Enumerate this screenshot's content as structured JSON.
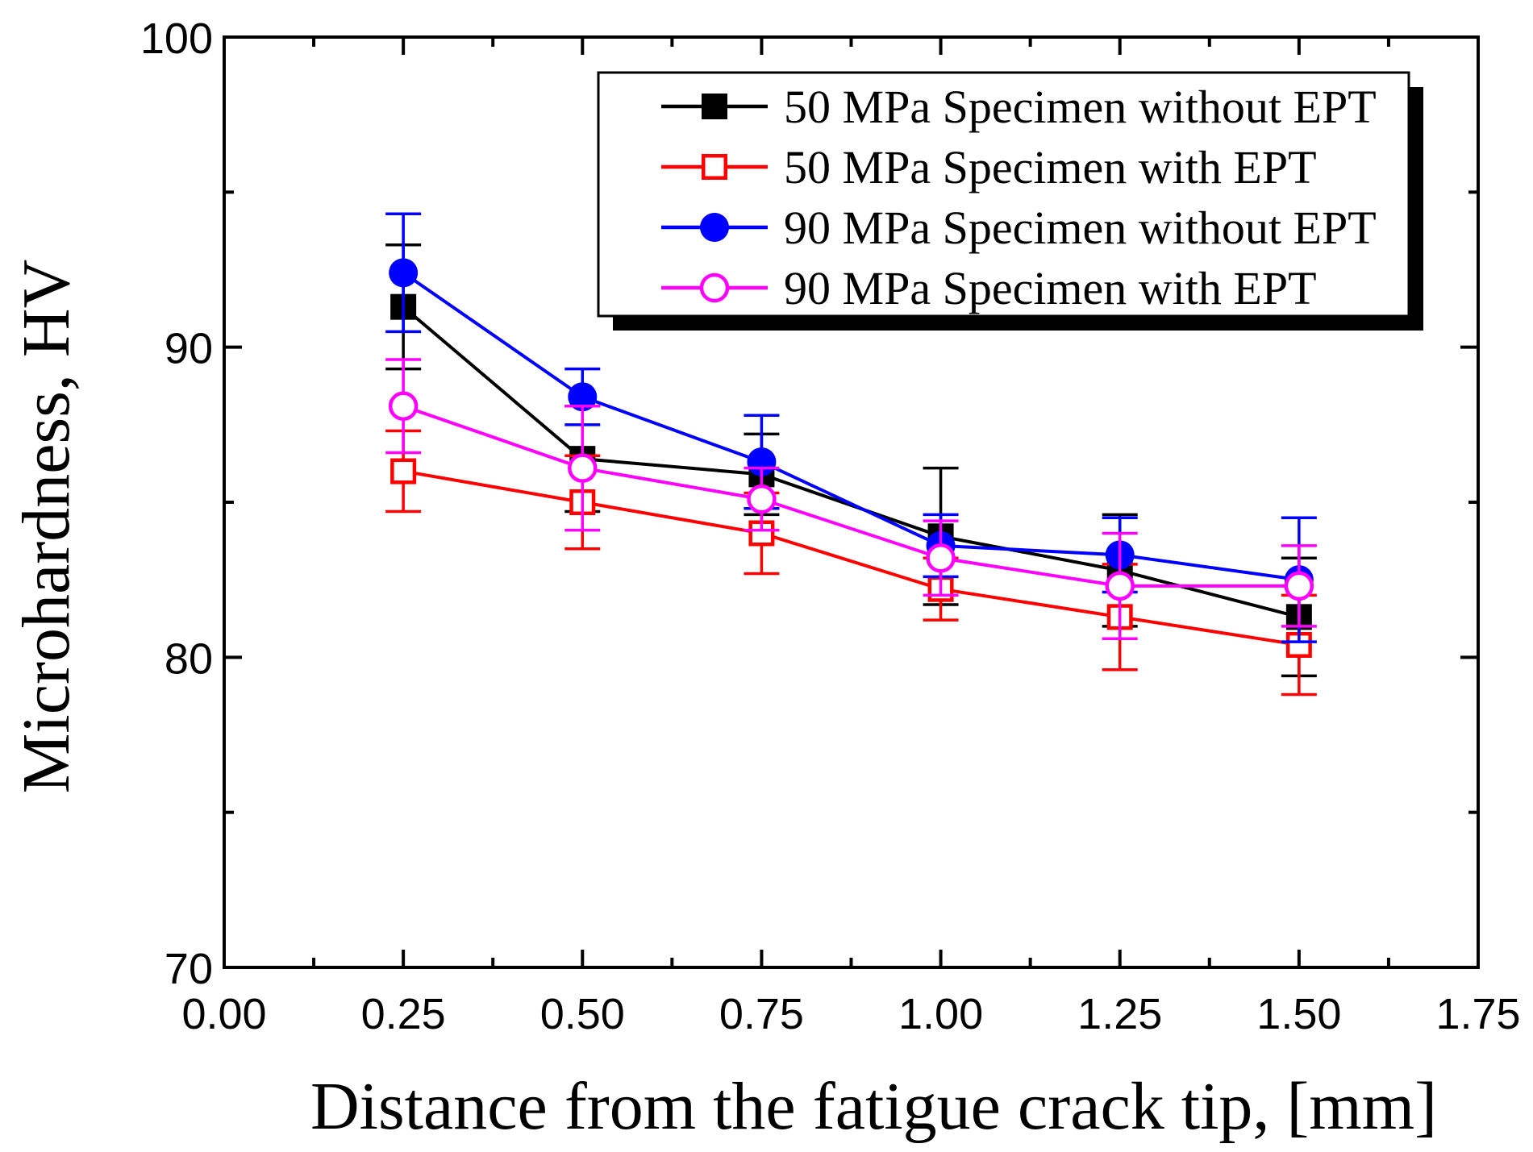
{
  "chart_data": {
    "type": "line",
    "title": "",
    "xlabel": "Distance from the fatigue crack tip, [mm]",
    "ylabel": "Microhardness, HV",
    "xlim": [
      0.0,
      1.75
    ],
    "ylim": [
      70,
      100
    ],
    "x_ticks": [
      0.0,
      0.25,
      0.5,
      0.75,
      1.0,
      1.25,
      1.5,
      1.75
    ],
    "x_tick_labels": [
      "0.00",
      "0.25",
      "0.50",
      "0.75",
      "1.00",
      "1.25",
      "1.50",
      "1.75"
    ],
    "y_ticks": [
      70,
      80,
      90,
      100
    ],
    "y_tick_labels": [
      "70",
      "80",
      "90",
      "100"
    ],
    "grid": false,
    "legend_position": "top-right",
    "x": [
      0.25,
      0.5,
      0.75,
      1.0,
      1.25,
      1.5
    ],
    "series": [
      {
        "name": "50 MPa Specimen without EPT",
        "color": "#000000",
        "marker": "square-filled",
        "values": [
          91.3,
          86.4,
          85.9,
          83.9,
          82.8,
          81.3
        ],
        "errors": [
          2.0,
          1.7,
          1.3,
          2.2,
          1.8,
          1.9
        ]
      },
      {
        "name": "50 MPa Specimen with EPT",
        "color": "#ff0000",
        "marker": "square-open",
        "values": [
          86.0,
          85.0,
          84.0,
          82.2,
          81.3,
          80.4
        ],
        "errors": [
          1.3,
          1.5,
          1.3,
          1.0,
          1.7,
          1.6
        ]
      },
      {
        "name": "90 MPa Specimen without EPT",
        "color": "#0000ff",
        "marker": "circle-filled",
        "values": [
          92.4,
          88.4,
          86.3,
          83.6,
          83.3,
          82.5
        ],
        "errors": [
          1.9,
          0.9,
          1.5,
          1.0,
          1.2,
          2.0
        ]
      },
      {
        "name": "90 MPa Specimen with EPT",
        "color": "#ff00ff",
        "marker": "circle-open",
        "values": [
          88.1,
          86.1,
          85.1,
          83.2,
          82.3,
          82.3
        ],
        "errors": [
          1.5,
          2.0,
          1.0,
          1.2,
          1.7,
          1.3
        ]
      }
    ]
  }
}
